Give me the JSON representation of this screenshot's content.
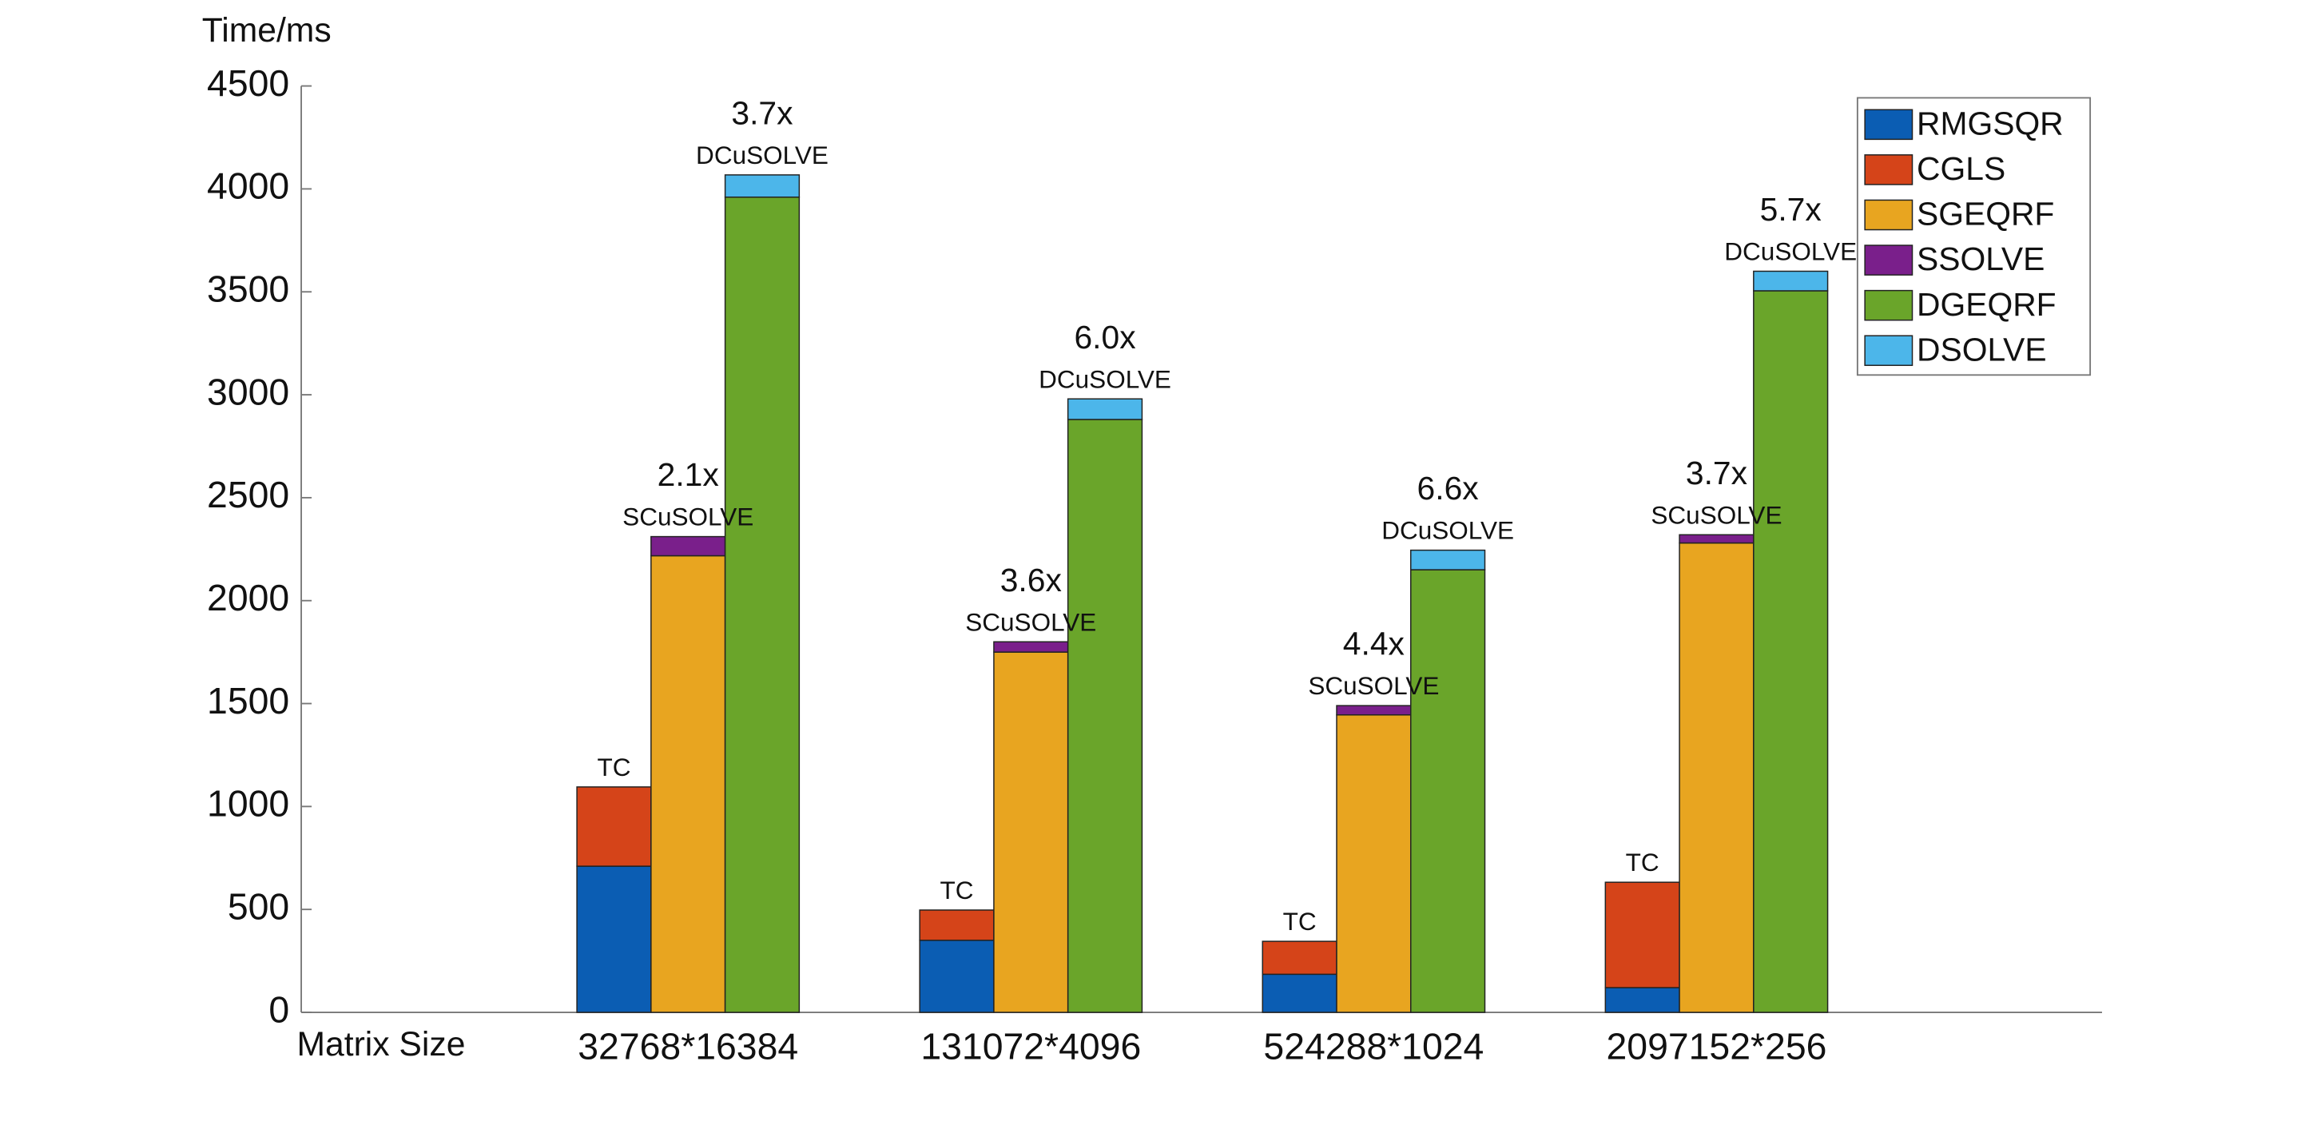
{
  "chart_data": {
    "type": "stacked_grouped_bar",
    "y_label": "Time/ms",
    "x_label": "Matrix Size",
    "categories": [
      "32768*16384",
      "131072*4096",
      "524288*1024",
      "2097152*256"
    ],
    "series": [
      {
        "name": "RMGSQR",
        "color": "#0b5db3",
        "stack": 0,
        "values": [
          710,
          350,
          185,
          120
        ]
      },
      {
        "name": "CGLS",
        "color": "#d54419",
        "stack": 0,
        "values": [
          385,
          147,
          160,
          512
        ]
      },
      {
        "name": "SGEQRF",
        "color": "#e8a520",
        "stack": 1,
        "values": [
          2218,
          1750,
          1445,
          2280
        ]
      },
      {
        "name": "SSOLVE",
        "color": "#7a1f8b",
        "stack": 1,
        "values": [
          93,
          50,
          45,
          40
        ]
      },
      {
        "name": "DGEQRF",
        "color": "#6aa52a",
        "stack": 2,
        "values": [
          3960,
          2880,
          2150,
          3505
        ]
      },
      {
        "name": "DSOLVE",
        "color": "#4cb6ea",
        "stack": 2,
        "values": [
          108,
          100,
          95,
          95
        ]
      }
    ],
    "stack_labels": [
      "TC",
      "SCuSOLVE",
      "DCuSOLVE"
    ],
    "speedup_labels": [
      {
        "stack": 1,
        "labels": [
          "2.1x",
          "3.6x",
          "4.4x",
          "3.7x"
        ]
      },
      {
        "stack": 2,
        "labels": [
          "3.7x",
          "6.0x",
          "6.6x",
          "5.7x"
        ]
      }
    ],
    "ylim": [
      0,
      4500
    ],
    "yticks": [
      0,
      500,
      1000,
      1500,
      2000,
      2500,
      3000,
      3500,
      4000,
      4500
    ],
    "legend": "upper right"
  }
}
